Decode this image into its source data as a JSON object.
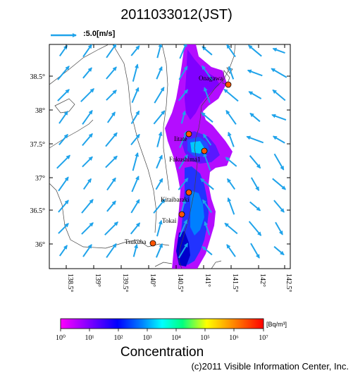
{
  "title": "2011033012(JST)",
  "wind_legend": {
    "label": ":5.0[m/s]",
    "arrow_color": "#1fa3ea"
  },
  "axes": {
    "lat_labels": [
      "38.5°",
      "38°",
      "37.5°",
      "37°",
      "36.5°",
      "36°"
    ],
    "lon_labels": [
      "138.5°",
      "139°",
      "139.5°",
      "140°",
      "140.5°",
      "141°",
      "141.5°",
      "142°",
      "142.5°"
    ]
  },
  "cities": [
    {
      "name": "Onagawa"
    },
    {
      "name": "Iitate"
    },
    {
      "name": "Fukushima1"
    },
    {
      "name": "Kitaibaraki"
    },
    {
      "name": "Tokai"
    },
    {
      "name": "Tsukuba"
    }
  ],
  "colorbar": {
    "unit": "[Bq/m³]",
    "tick_labels": [
      "10⁰",
      "10¹",
      "10²",
      "10³",
      "10⁴",
      "10⁵",
      "10⁶",
      "10⁷"
    ],
    "colors": [
      "#ff00ff",
      "#8000ff",
      "#0000ff",
      "#0080ff",
      "#00ffff",
      "#00ff80",
      "#ffff00",
      "#ff8000",
      "#ff0000"
    ]
  },
  "concentration_label": "Concentration",
  "copyright": "(c)2011 Visible Information Center, Inc."
}
